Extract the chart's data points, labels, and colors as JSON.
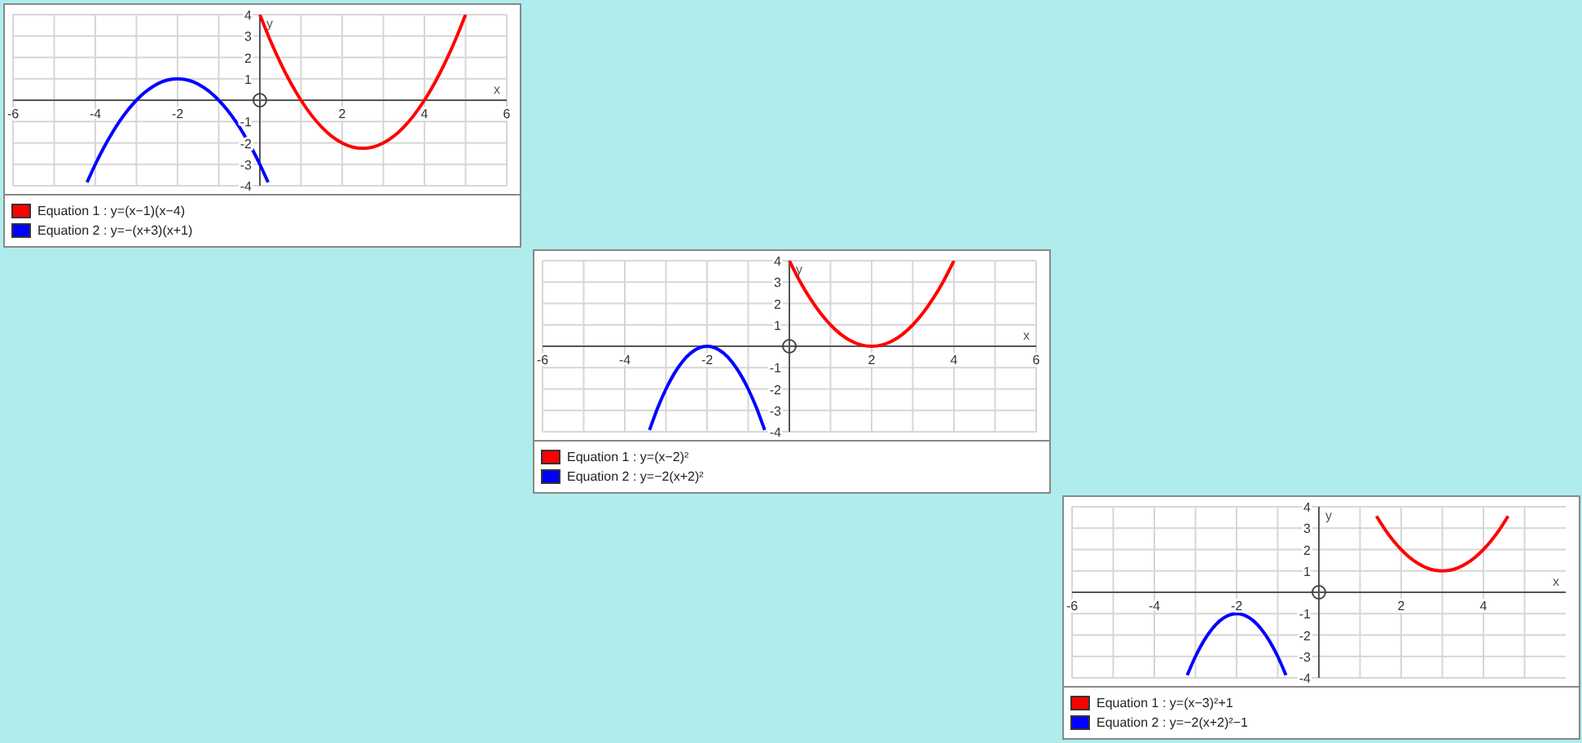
{
  "chart_data": [
    {
      "type": "line",
      "xlabel": "x",
      "ylabel": "y",
      "xlim": [
        -6,
        6
      ],
      "ylim": [
        -4,
        4
      ],
      "xticks": [
        -6,
        {
          "value": -5,
          "label": null
        },
        -4,
        {
          "value": -3,
          "label": null
        },
        -2,
        {
          "value": -1,
          "label": null
        },
        {
          "value": 1,
          "label": null
        },
        2,
        {
          "value": 3,
          "label": null
        },
        4,
        {
          "value": 5,
          "label": null
        },
        6
      ],
      "yticks": [
        -4,
        -3,
        -2,
        -1,
        1,
        2,
        3,
        4
      ],
      "grid": true,
      "legend": "bottom",
      "marker": "none",
      "line_style": "solid",
      "series": [
        {
          "name": "Equation 1 : y=(x−1)(x−4)",
          "color": "#ff0000",
          "x": [
            0,
            0.25,
            0.5,
            0.75,
            1,
            1.25,
            1.5,
            1.75,
            2,
            2.25,
            2.5,
            2.75,
            3,
            3.25,
            3.5,
            3.75,
            4,
            4.25,
            4.5,
            4.75,
            5
          ],
          "values": [
            4,
            2.81,
            1.75,
            0.81,
            0,
            -0.69,
            -1.25,
            -1.69,
            -2,
            -2.19,
            -2.25,
            -2.19,
            -2,
            -1.69,
            -1.25,
            -0.69,
            0,
            0.81,
            1.75,
            2.81,
            4
          ]
        },
        {
          "name": "Equation 2 : y=−(x+3)(x+1)",
          "color": "#0000ff",
          "x": [
            -4.2,
            -4,
            -3.8,
            -3.6,
            -3.4,
            -3.2,
            -3,
            -2.8,
            -2.6,
            -2.4,
            -2.2,
            -2,
            -1.8,
            -1.6,
            -1.4,
            -1.2,
            -1,
            -0.8,
            -0.6,
            -0.4,
            -0.2,
            0,
            0.2
          ],
          "values": [
            -3.84,
            -3,
            -2.24,
            -1.56,
            -0.96,
            -0.44,
            0,
            0.36,
            0.64,
            0.84,
            0.96,
            1,
            0.96,
            0.84,
            0.64,
            0.36,
            0,
            -0.44,
            -0.96,
            -1.56,
            -2.24,
            -3,
            -3.84
          ]
        }
      ]
    },
    {
      "type": "line",
      "xlabel": "x",
      "ylabel": "y",
      "xlim": [
        -6,
        6
      ],
      "ylim": [
        -4,
        4
      ],
      "xticks": [
        -6,
        {
          "value": -5,
          "label": null
        },
        -4,
        {
          "value": -3,
          "label": null
        },
        -2,
        {
          "value": -1,
          "label": null
        },
        {
          "value": 1,
          "label": null
        },
        2,
        {
          "value": 3,
          "label": null
        },
        4,
        {
          "value": 5,
          "label": null
        },
        6
      ],
      "yticks": [
        -4,
        -3,
        -2,
        -1,
        1,
        2,
        3,
        4
      ],
      "grid": true,
      "legend": "bottom",
      "marker": "none",
      "line_style": "solid",
      "series": [
        {
          "name": "Equation 1 : y=(x−2)²",
          "color": "#ff0000",
          "x": [
            0,
            0.25,
            0.5,
            0.75,
            1,
            1.25,
            1.5,
            1.75,
            2,
            2.25,
            2.5,
            2.75,
            3,
            3.25,
            3.5,
            3.75,
            4
          ],
          "values": [
            4,
            3.06,
            2.25,
            1.56,
            1,
            0.56,
            0.25,
            0.06,
            0,
            0.06,
            0.25,
            0.56,
            1,
            1.56,
            2.25,
            3.06,
            4
          ]
        },
        {
          "name": "Equation 2 : y=−2(x+2)²",
          "color": "#0000ff",
          "x": [
            -3.4,
            -3.2,
            -3,
            -2.8,
            -2.6,
            -2.4,
            -2.2,
            -2,
            -1.8,
            -1.6,
            -1.4,
            -1.2,
            -1,
            -0.8,
            -0.6
          ],
          "values": [
            -3.92,
            -2.88,
            -2,
            -1.28,
            -0.72,
            -0.32,
            -0.08,
            0,
            -0.08,
            -0.32,
            -0.72,
            -1.28,
            -2,
            -2.88,
            -3.92
          ]
        }
      ]
    },
    {
      "type": "line",
      "xlabel": "x",
      "ylabel": "y",
      "xlim": [
        -6,
        6
      ],
      "ylim": [
        -4,
        4
      ],
      "xticks": [
        -6,
        {
          "value": -5,
          "label": null
        },
        -4,
        {
          "value": -3,
          "label": null
        },
        -2,
        {
          "value": -1,
          "label": null
        },
        {
          "value": 1,
          "label": null
        },
        2,
        {
          "value": 3,
          "label": null
        },
        4,
        {
          "value": 5,
          "label": null
        }
      ],
      "yticks": [
        -4,
        -3,
        -2,
        -1,
        1,
        2,
        3,
        4
      ],
      "grid": true,
      "legend": "bottom",
      "marker": "none",
      "line_style": "solid",
      "series": [
        {
          "name": "Equation 1 : y=(x−3)²+1",
          "color": "#ff0000",
          "x": [
            1.4,
            1.6,
            1.8,
            2,
            2.2,
            2.4,
            2.6,
            2.8,
            3,
            3.2,
            3.4,
            3.6,
            3.8,
            4,
            4.2,
            4.4,
            4.6
          ],
          "values": [
            3.56,
            2.96,
            2.44,
            2,
            1.64,
            1.36,
            1.16,
            1.04,
            1,
            1.04,
            1.16,
            1.36,
            1.64,
            2,
            2.44,
            2.96,
            3.56
          ]
        },
        {
          "name": "Equation 2 : y=−2(x+2)²−1",
          "color": "#0000ff",
          "x": [
            -3.2,
            -3,
            -2.8,
            -2.6,
            -2.4,
            -2.2,
            -2,
            -1.8,
            -1.6,
            -1.4,
            -1.2,
            -1,
            -0.8
          ],
          "values": [
            -3.88,
            -3,
            -2.28,
            -1.72,
            -1.32,
            -1.08,
            -1,
            -1.08,
            -1.32,
            -1.72,
            -2.28,
            -3,
            -3.88
          ]
        }
      ]
    }
  ]
}
